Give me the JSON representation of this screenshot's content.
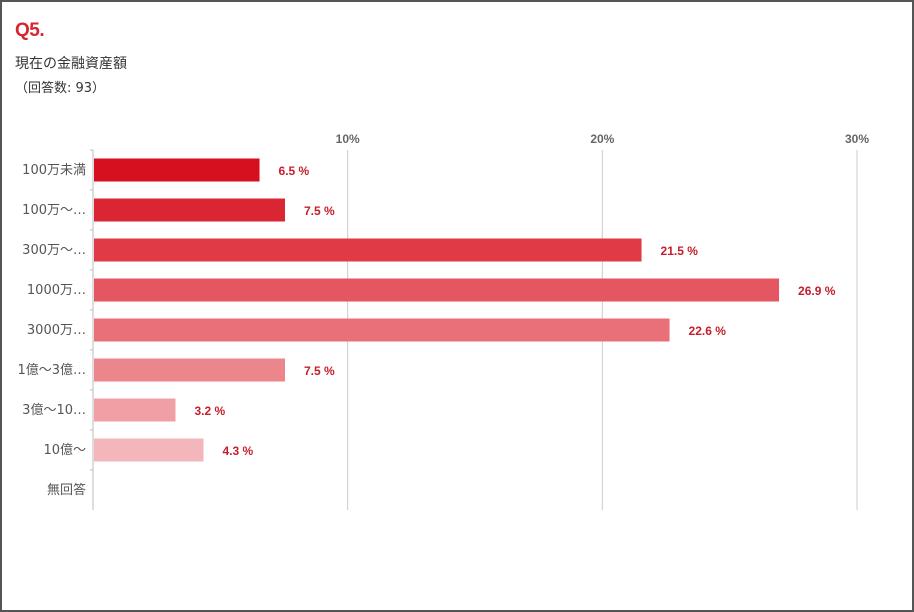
{
  "header": {
    "question_number": "Q5.",
    "question_text": "現在の金融資産額",
    "respondents": "（回答数: 93）"
  },
  "chart_data": {
    "type": "bar",
    "orientation": "horizontal",
    "categories": [
      "100万未満",
      "100万～…",
      "300万～…",
      "1000万…",
      "3000万…",
      "1億～3億…",
      "3億～10…",
      "10億～",
      "無回答"
    ],
    "values": [
      6.5,
      7.5,
      21.5,
      26.9,
      22.6,
      7.5,
      3.2,
      4.3,
      0
    ],
    "value_labels": [
      "6.5 %",
      "7.5 %",
      "21.5 %",
      "26.9 %",
      "22.6 %",
      "7.5 %",
      "3.2 %",
      "4.3 %",
      ""
    ],
    "x_ticks": [
      10,
      20,
      30
    ],
    "x_tick_labels": [
      "10%",
      "20%",
      "30%"
    ],
    "xlim": [
      0,
      30
    ],
    "grid": true,
    "colors": [
      "#d6101e",
      "#da2632",
      "#df3a45",
      "#e45661",
      "#e96f78",
      "#ec868d",
      "#f0a0a5",
      "#f3b6ba",
      "#f6c8cb"
    ]
  }
}
